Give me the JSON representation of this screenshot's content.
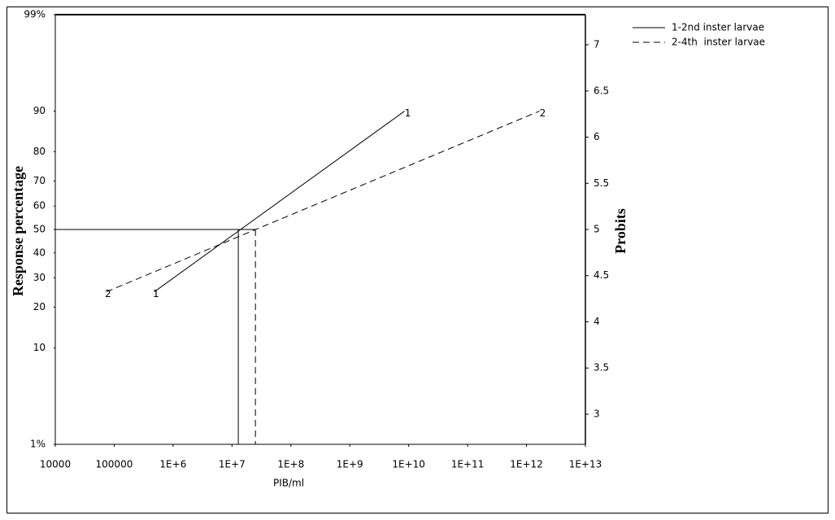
{
  "chart_data": {
    "type": "line",
    "x_label": "PIB/ml",
    "y_label": "Response percentage",
    "y2_label": "Probits",
    "xscale": "log",
    "yscale": "probit",
    "xlim": [
      10000,
      10000000000000
    ],
    "xticks": [
      10000,
      100000,
      {
        "value": 1000000,
        "label": "1E+6"
      },
      {
        "value": 10000000,
        "label": "1E+7"
      },
      {
        "value": 100000000,
        "label": "1E+8"
      },
      {
        "value": 1000000000,
        "label": "1E+9"
      },
      {
        "value": 10000000000,
        "label": "1E+10"
      },
      {
        "value": 100000000000,
        "label": "1E+11"
      },
      {
        "value": 1000000000000,
        "label": "1E+12"
      },
      {
        "value": 10000000000000,
        "label": "1E+13"
      }
    ],
    "ylim": [
      1,
      99
    ],
    "yticks": [
      {
        "value": 1,
        "label": "1%"
      },
      10,
      20,
      30,
      40,
      50,
      60,
      70,
      80,
      90,
      {
        "value": 99,
        "label": "99%"
      }
    ],
    "y2lim": [
      2.674,
      7.326
    ],
    "y2ticks": [
      3,
      3.5,
      4,
      4.5,
      5,
      5.5,
      6,
      6.5,
      7
    ],
    "reference_level": 50,
    "series": [
      {
        "name": "1-2nd inster larvae",
        "label": "1",
        "color": "#000000",
        "style": "solid",
        "x": [
          480000,
          8500000000
        ],
        "values": [
          25,
          90
        ],
        "lc50": 12800000
      },
      {
        "name": "2-4th  inster larvae",
        "label": "2",
        "color": "#000000",
        "style": "dashed",
        "x": [
          74000,
          1660000000000
        ],
        "values": [
          25,
          90
        ],
        "lc50": 25000000
      }
    ]
  }
}
